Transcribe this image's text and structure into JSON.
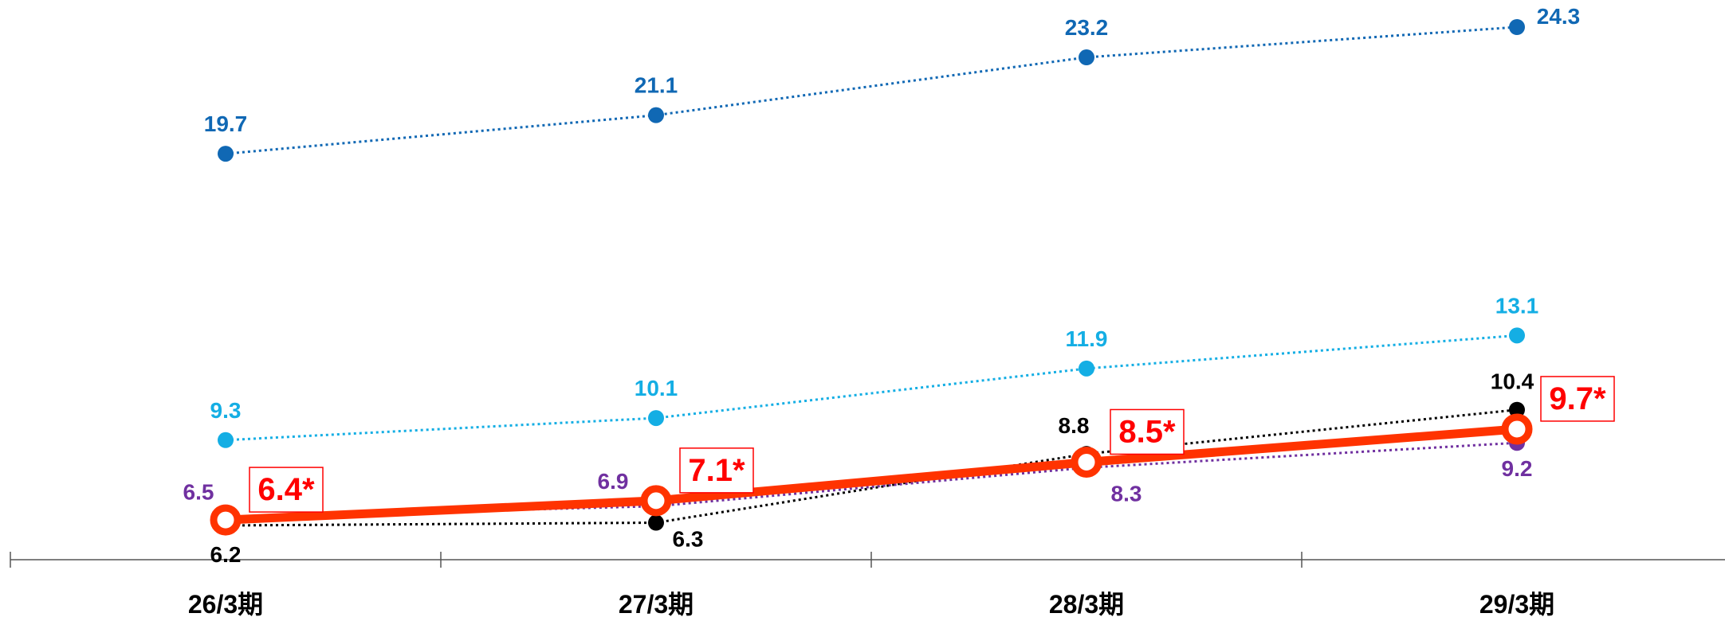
{
  "chart_data": {
    "type": "line",
    "categories": [
      "26/3期",
      "27/3期",
      "28/3期",
      "29/3期"
    ],
    "ylim": [
      0,
      26
    ],
    "grid": false,
    "series": [
      {
        "values": [
          19.7,
          21.1,
          23.2,
          24.3
        ],
        "labels": [
          "19.7",
          "21.1",
          "23.2",
          "24.3"
        ],
        "color": "#1068b4",
        "style": "dotted"
      },
      {
        "values": [
          9.3,
          10.1,
          11.9,
          13.1
        ],
        "labels": [
          "9.3",
          "10.1",
          "11.9",
          "13.1"
        ],
        "color": "#14aee4",
        "style": "dotted"
      },
      {
        "values": [
          6.2,
          6.3,
          8.8,
          10.4
        ],
        "labels": [
          "6.2",
          "6.3",
          "8.8",
          "10.4"
        ],
        "color": "#000000",
        "style": "dotted"
      },
      {
        "values": [
          6.5,
          6.9,
          8.3,
          9.2
        ],
        "labels": [
          "6.5",
          "6.9",
          "8.3",
          "9.2"
        ],
        "color": "#7030a0",
        "style": "dotted"
      },
      {
        "values": [
          6.4,
          7.1,
          8.5,
          9.7
        ],
        "labels": [
          "6.4*",
          "7.1*",
          "8.5*",
          "9.7*"
        ],
        "color": "#ff3300",
        "label_color": "#ff0000",
        "style": "solid",
        "label_boxed": true
      }
    ]
  }
}
